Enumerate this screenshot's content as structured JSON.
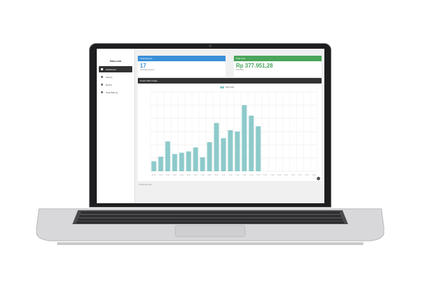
{
  "app": {
    "brand": "Solu.Lock",
    "nav": [
      {
        "label": "Dashboard",
        "icon": "home-icon",
        "active": true
      },
      {
        "label": "History",
        "icon": "history-icon",
        "active": false
      },
      {
        "label": "Report",
        "icon": "report-icon",
        "active": false
      },
      {
        "label": "Total Watt ya",
        "icon": "bolt-icon",
        "active": false
      }
    ]
  },
  "cards": {
    "devices": {
      "title": "Total Devices",
      "value": "17",
      "sub": "Connected Devices",
      "color": "#3a8fd8"
    },
    "cost": {
      "title": "Total Cost",
      "value": "Rp 377.951,28",
      "sub": "Total Cost",
      "color": "#4aa55a"
    }
  },
  "chart_panel": {
    "title": "Hourly Watt Usage",
    "legend": "Watt Usage"
  },
  "chart_data": {
    "type": "bar",
    "title": "Hourly Watt Usage",
    "series": [
      {
        "name": "Watt Usage",
        "values": [
          15,
          22,
          45,
          26,
          28,
          30,
          36,
          21,
          44,
          73,
          50,
          62,
          60,
          100,
          84,
          68,
          0,
          0,
          0,
          0,
          0,
          0,
          0,
          0
        ]
      }
    ],
    "categories": [
      "00:00",
      "01:00",
      "02:00",
      "03:00",
      "04:00",
      "05:00",
      "06:00",
      "07:00",
      "08:00",
      "09:00",
      "10:00",
      "11:00",
      "12:00",
      "13:00",
      "14:00",
      "15:00",
      "16:00",
      "17:00",
      "18:00",
      "19:00",
      "20:00",
      "21:00",
      "22:00",
      "23:00"
    ],
    "ylim": [
      0,
      120
    ],
    "grid": true,
    "legend_position": "top-center",
    "bar_color": "#8dcaca"
  },
  "footer": "© 2024 Solu.Lock"
}
